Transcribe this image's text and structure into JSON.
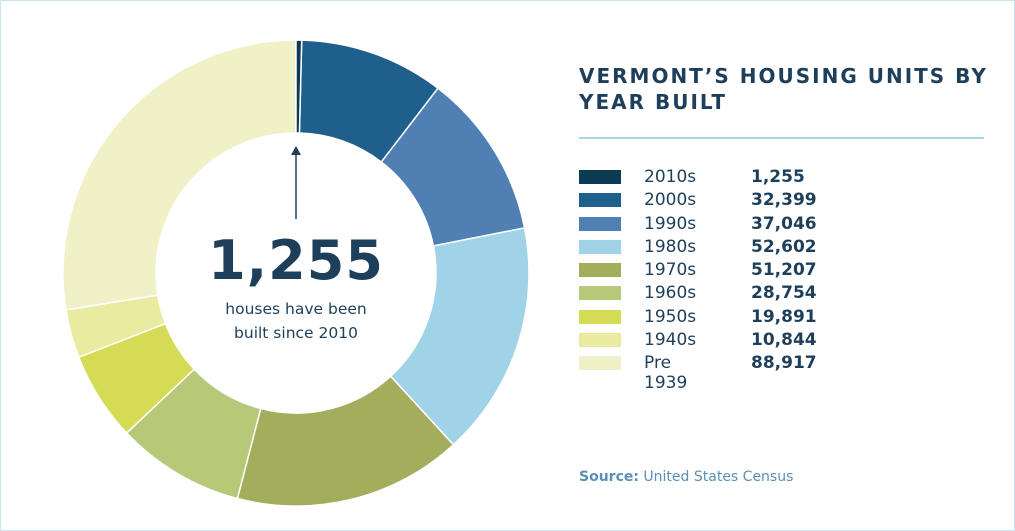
{
  "chart_data": {
    "type": "donut",
    "title": "VERMONT’S HOUSING UNITS BY YEAR BUILT",
    "categories": [
      "2010s",
      "2000s",
      "1990s",
      "1980s",
      "1970s",
      "1960s",
      "1950s",
      "1940s",
      "Pre 1939"
    ],
    "values": [
      1255,
      32399,
      37046,
      52602,
      51207,
      28754,
      19891,
      10844,
      88917
    ],
    "value_labels": [
      "1,255",
      "32,399",
      "37,046",
      "52,602",
      "51,207",
      "28,754",
      "19,891",
      "10,844",
      "88,917"
    ],
    "colors": [
      "#0b3a53",
      "#1f5f8b",
      "#4f7fb3",
      "#a0d2e8",
      "#a3ad5c",
      "#b7c878",
      "#d6db55",
      "#e8eba0",
      "#f0f1c6"
    ],
    "annotation": {
      "value_label": "1,255",
      "text": "houses have been built since 2010"
    },
    "source": {
      "label": "Source:",
      "text": "United States Census"
    }
  }
}
